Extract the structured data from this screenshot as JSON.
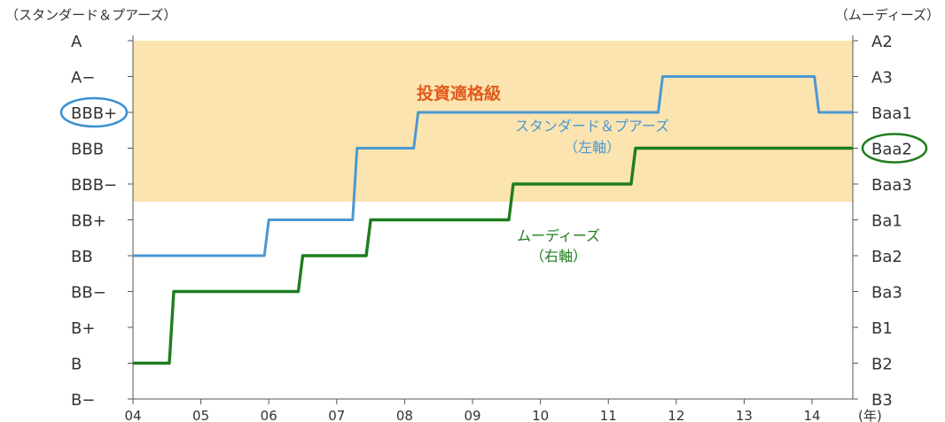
{
  "chart_data": {
    "type": "line",
    "step": true,
    "left_axis_title": "（スタンダード＆プアーズ）",
    "right_axis_title": "（ムーディーズ）",
    "x_unit": "(年)",
    "x_ticks": [
      "04",
      "05",
      "06",
      "07",
      "08",
      "09",
      "10",
      "11",
      "12",
      "13",
      "14"
    ],
    "xlim": [
      2004,
      2014.6
    ],
    "left_ticks": [
      "A",
      "A−",
      "BBB+",
      "BBB",
      "BBB−",
      "BB+",
      "BB",
      "BB−",
      "B+",
      "B",
      "B−"
    ],
    "right_ticks": [
      "A2",
      "A3",
      "Baa1",
      "Baa2",
      "Baa3",
      "Ba1",
      "Ba2",
      "Ba3",
      "B1",
      "B2",
      "B3"
    ],
    "highlight_left": "BBB+",
    "highlight_right": "Baa2",
    "investment_grade_zone": {
      "label": "投資適格級",
      "from_rating": "A",
      "to_rating": "BBB−",
      "color": "#fce4b0"
    },
    "series": [
      {
        "name": "スタンダード＆プアーズ",
        "sublabel": "（左軸）",
        "axis": "left",
        "color": "#4b98d2",
        "points": [
          {
            "x": 2004.0,
            "rating": "BB"
          },
          {
            "x": 2006.0,
            "rating": "BB+"
          },
          {
            "x": 2007.3,
            "rating": "BBB"
          },
          {
            "x": 2008.2,
            "rating": "BBB+"
          },
          {
            "x": 2011.8,
            "rating": "A−"
          },
          {
            "x": 2014.1,
            "rating": "BBB+"
          },
          {
            "x": 2014.6,
            "rating": "BBB+"
          }
        ]
      },
      {
        "name": "ムーディーズ",
        "sublabel": "（右軸）",
        "axis": "right",
        "color": "#1f7d1f",
        "points": [
          {
            "x": 2004.0,
            "rating": "B2"
          },
          {
            "x": 2004.6,
            "rating": "Ba3"
          },
          {
            "x": 2006.5,
            "rating": "Ba2"
          },
          {
            "x": 2007.5,
            "rating": "Ba1"
          },
          {
            "x": 2009.6,
            "rating": "Baa3"
          },
          {
            "x": 2011.4,
            "rating": "Baa2"
          },
          {
            "x": 2014.6,
            "rating": "Baa2"
          }
        ]
      }
    ]
  }
}
